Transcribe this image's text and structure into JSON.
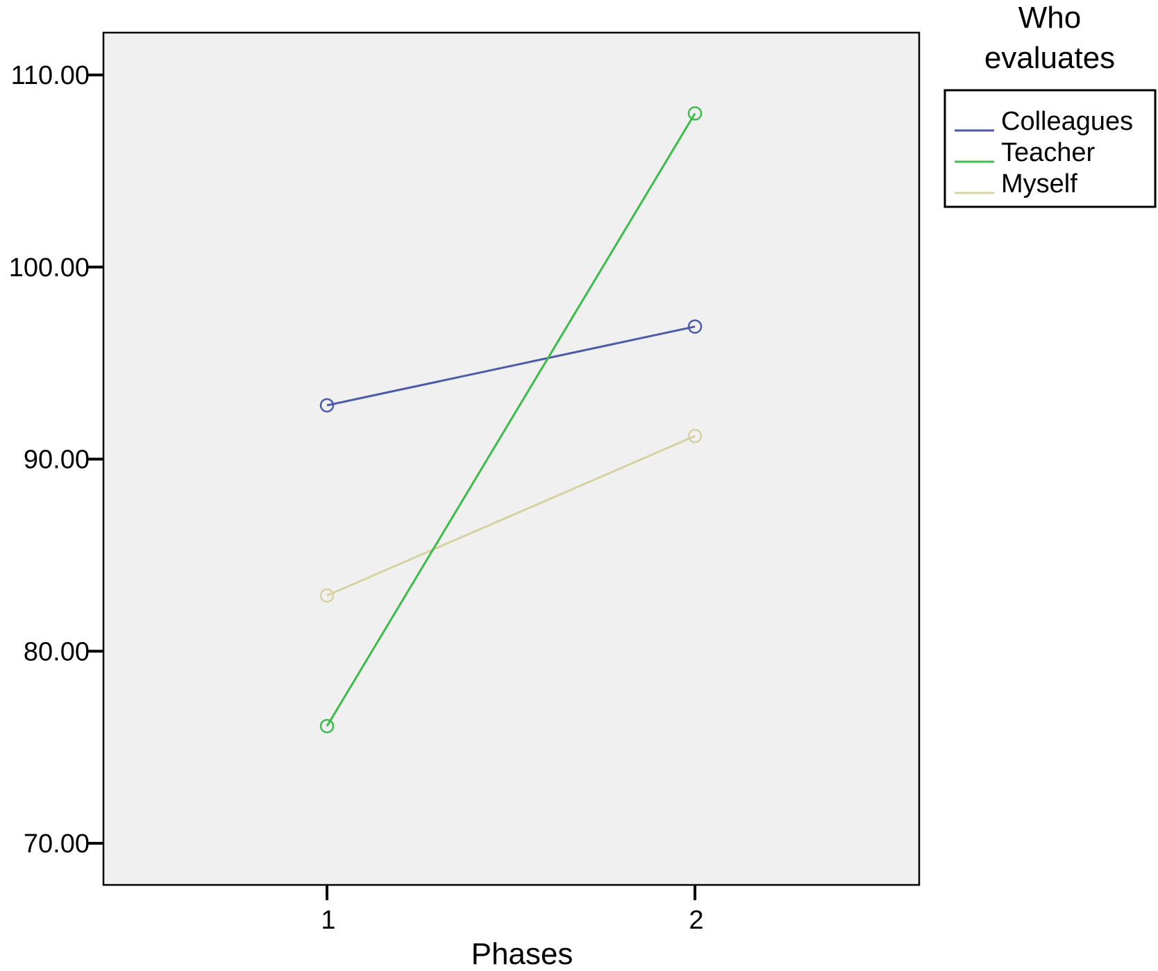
{
  "chart_data": {
    "type": "line",
    "categories": [
      "1",
      "2"
    ],
    "xlabel": "Phases",
    "ylabel": "",
    "ylim": [
      68,
      112
    ],
    "yticks": [
      "70.00",
      "80.00",
      "90.00",
      "100.00",
      "110.00"
    ],
    "grid": false,
    "legend": {
      "title_lines": [
        "Who",
        "evaluates"
      ],
      "placement": "right-top"
    },
    "series": [
      {
        "name": "Colleagues",
        "values": [
          92.8,
          96.9
        ],
        "color": "#4a5aa8"
      },
      {
        "name": "Teacher",
        "values": [
          76.1,
          108.0
        ],
        "color": "#3dbb4a"
      },
      {
        "name": "Myself",
        "values": [
          82.9,
          91.2
        ],
        "color": "#d6d1a0"
      }
    ],
    "plot_background": "#f0f0f0"
  }
}
